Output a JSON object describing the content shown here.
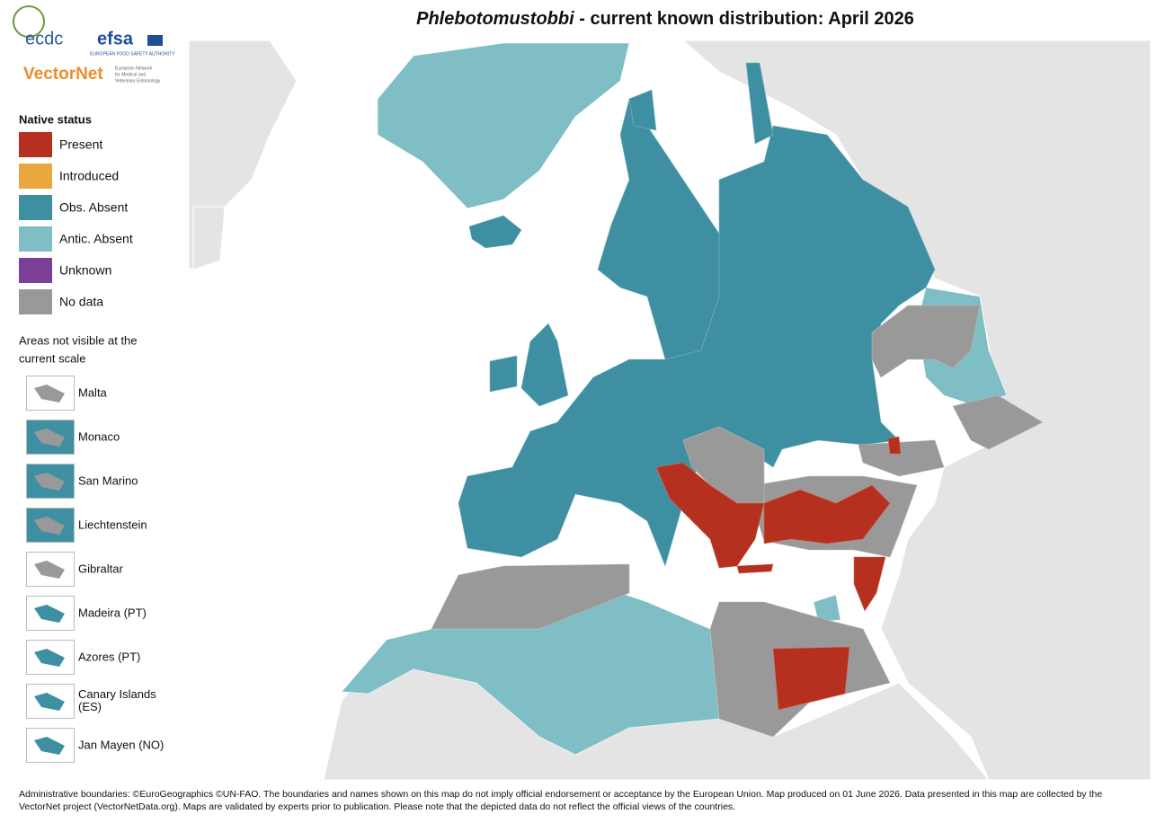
{
  "title": {
    "species": "Phlebotomustobbi",
    "rest": " - current known distribution: April 2026"
  },
  "logos": {
    "ecdc": "ecdc",
    "efsa": "efsa",
    "efsa_subtitle": "EUROPEAN FOOD SAFETY AUTHORITY",
    "vectornet": "VectorNet",
    "vectornet_subtitle": [
      "European Network",
      "for Medical and",
      "Veterinary Entomology"
    ]
  },
  "legend": {
    "title": "Native status",
    "items": [
      {
        "label": "Present",
        "color": "#b5301e"
      },
      {
        "label": "Introduced",
        "color": "#e8a83e"
      },
      {
        "label": "Obs. Absent",
        "color": "#3f8fa3"
      },
      {
        "label": "Antic. Absent",
        "color": "#7fbec4"
      },
      {
        "label": "Unknown",
        "color": "#7b3f97"
      },
      {
        "label": "No data",
        "color": "#999999"
      }
    ]
  },
  "insets": {
    "title": [
      "Areas not visible at the",
      "current scale"
    ],
    "items": [
      "Malta",
      "Monaco",
      "San Marino",
      "Liechtenstein",
      "Gibraltar",
      "Madeira (PT)",
      "Azores (PT)",
      "Canary Islands (ES)",
      "Jan Mayen (NO)"
    ]
  },
  "footer": [
    "Administrative boundaries: ©EuroGeographics ©UN-FAO. The boundaries and names shown on this map do not imply official endorsement or acceptance by the European Union. Map produced on 01 June 2026. Data presented in this map are collected by the",
    "VectorNet project (VectorNetData.org). Maps are validated by experts prior to publication. Please note that the depicted data do not reflect the official views of the countries."
  ]
}
